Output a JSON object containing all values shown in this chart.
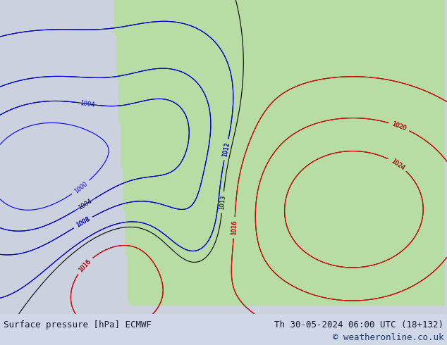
{
  "title_left": "Surface pressure [hPa] ECMWF",
  "title_right": "Th 30-05-2024 06:00 UTC (18+132)",
  "copyright": "© weatheronline.co.uk",
  "bg_color": "#d0d8e8",
  "map_bg": "#e8e8e8",
  "text_color": "#1a1a2e",
  "copyright_color": "#1a3a6e",
  "footer_bg": "#c8d0e0",
  "fig_width": 6.34,
  "fig_height": 4.9,
  "dpi": 100
}
